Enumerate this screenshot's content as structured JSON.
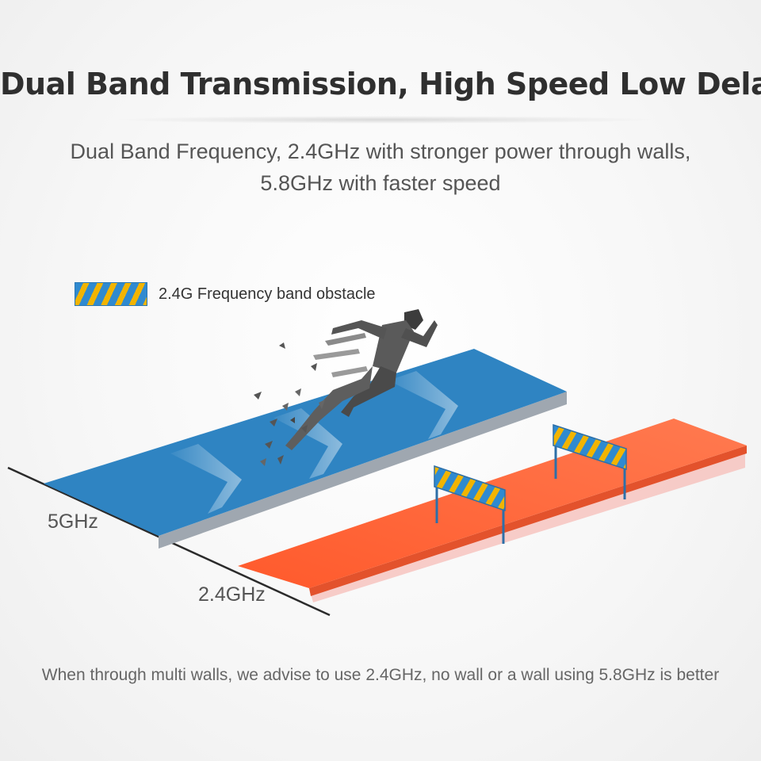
{
  "title": "Dual Band Transmission, High Speed Low Delay",
  "subtitle_line1": "Dual Band Frequency, 2.4GHz with stronger power through walls,",
  "subtitle_line2": "5.8GHz with faster speed",
  "legend": {
    "label": "2.4G Frequency band obstacle",
    "stripe_colors": [
      "#2f8ad0",
      "#f2b400"
    ]
  },
  "bands": [
    {
      "label": "5GHz",
      "color": "#2f84c2"
    },
    {
      "label": "2.4GHz",
      "color": "#ff6a3a"
    }
  ],
  "footer": "When through multi walls, we advise to use 2.4GHz, no wall or a wall using 5.8GHz is better",
  "icons": [
    "running-man-icon",
    "hurdle-icon",
    "chevron-arrow-icon"
  ]
}
